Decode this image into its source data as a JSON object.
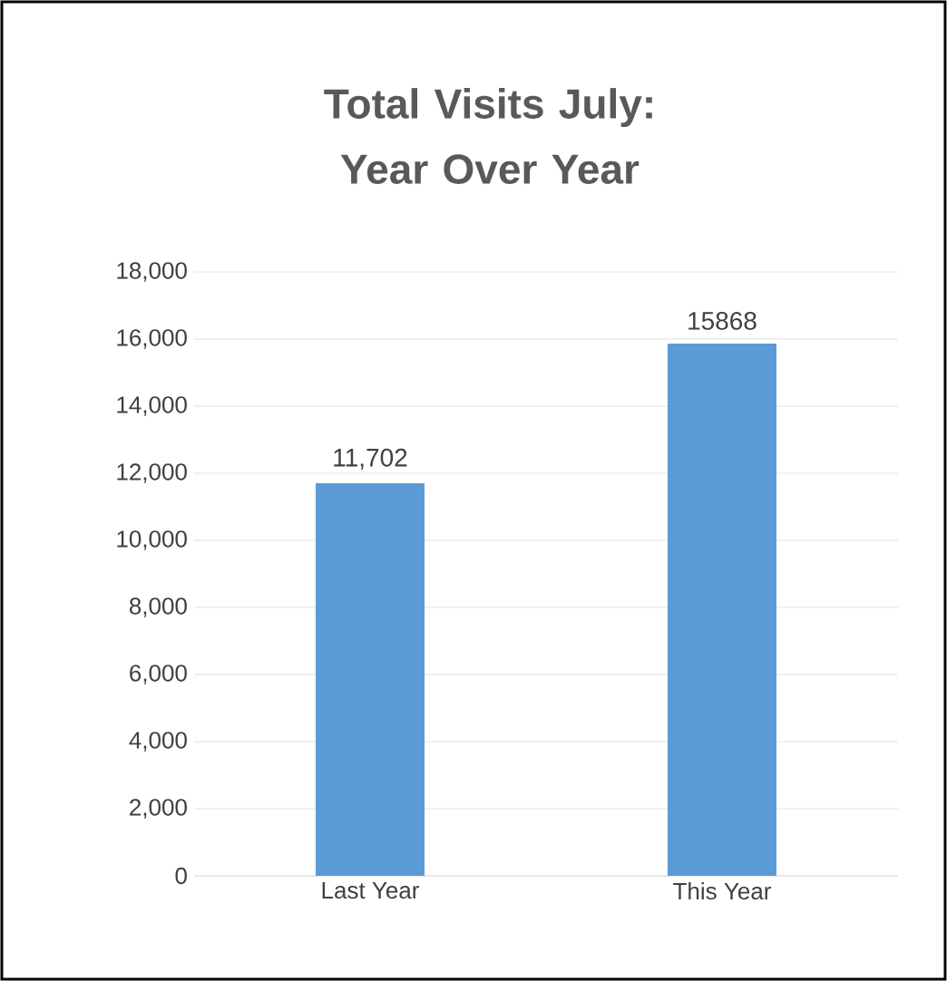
{
  "chart_data": {
    "type": "bar",
    "title": "Total Visits July: Year Over Year",
    "categories": [
      "Last Year",
      "This Year"
    ],
    "values": [
      11702,
      15868
    ],
    "value_labels": [
      "11,702",
      "15868"
    ],
    "color": "#5b9bd5",
    "ylim": [
      0,
      18000
    ],
    "yticks": [
      0,
      {
        "value": 2000,
        "label": "2,000"
      },
      {
        "value": 4000,
        "label": "4,000"
      },
      {
        "value": 6000,
        "label": "6,000"
      },
      {
        "value": 8000,
        "label": "8,000"
      },
      {
        "value": 10000,
        "label": "10,000"
      },
      {
        "value": 12000,
        "label": "12,000"
      },
      {
        "value": 14000,
        "label": "14,000"
      },
      {
        "value": 16000,
        "label": "16,000"
      },
      {
        "value": 18000,
        "label": "18,000"
      }
    ],
    "grid": "y"
  }
}
